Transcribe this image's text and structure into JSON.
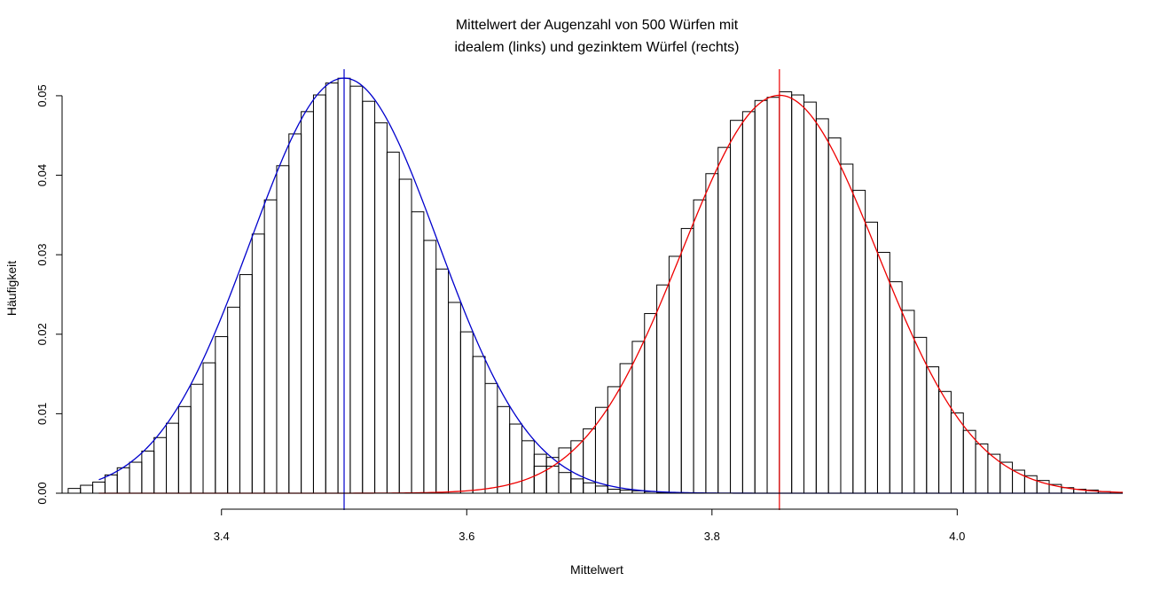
{
  "chart_data": {
    "type": "histogram",
    "title_line1": "Mittelwert der Augenzahl von 500 Würfen mit",
    "title_line2": "idealem (links) und gezinktem Würfel (rechts)",
    "xlabel": "Mittelwert",
    "ylabel": "Häufigkeit",
    "xlim": [
      3.27,
      4.135
    ],
    "ylim": [
      0,
      0.052
    ],
    "x_ticks": [
      3.4,
      3.6,
      3.8,
      4.0
    ],
    "x_tick_labels": [
      "3.4",
      "3.6",
      "3.8",
      "4.0"
    ],
    "y_ticks": [
      0,
      0.01,
      0.02,
      0.03,
      0.04,
      0.05
    ],
    "y_tick_labels": [
      "0.00",
      "0.01",
      "0.02",
      "0.03",
      "0.04",
      "0.05"
    ],
    "bin_width": 0.01,
    "series": [
      {
        "bins_start": 3.275,
        "color": "#000000",
        "values": [
          0.0006,
          0.001,
          0.0014,
          0.0023,
          0.0032,
          0.0039,
          0.0053,
          0.007,
          0.0088,
          0.0109,
          0.0137,
          0.0164,
          0.0197,
          0.0234,
          0.0275,
          0.0326,
          0.0369,
          0.0412,
          0.0452,
          0.048,
          0.0501,
          0.0516,
          0.0522,
          0.0512,
          0.0493,
          0.0466,
          0.0429,
          0.0395,
          0.0354,
          0.0318,
          0.0282,
          0.024,
          0.0203,
          0.0172,
          0.0138,
          0.0109,
          0.0087,
          0.0066,
          0.0049,
          0.0034,
          0.0026,
          0.0018,
          0.0013,
          0.0009,
          0.0005,
          0.0004,
          0.0003,
          0.0002,
          0.0001
        ]
      },
      {
        "bins_start": 3.655,
        "color": "#000000",
        "values": [
          0.0034,
          0.0045,
          0.0057,
          0.0066,
          0.0081,
          0.0108,
          0.0134,
          0.0163,
          0.0191,
          0.0226,
          0.0262,
          0.0298,
          0.0333,
          0.0369,
          0.0402,
          0.0435,
          0.0469,
          0.048,
          0.0494,
          0.0498,
          0.0505,
          0.0501,
          0.0492,
          0.0471,
          0.0447,
          0.0414,
          0.0381,
          0.0341,
          0.0303,
          0.0266,
          0.023,
          0.0196,
          0.0159,
          0.0128,
          0.0101,
          0.0079,
          0.0062,
          0.0049,
          0.0039,
          0.0029,
          0.0022,
          0.0016,
          0.0011,
          0.0007,
          0.0005,
          0.0004,
          0.0002
        ]
      }
    ],
    "density_curves": [
      {
        "mean": 3.5,
        "sd": 0.0764,
        "color": "#0000cc",
        "x_range": [
          3.3,
          4.135
        ]
      },
      {
        "mean": 3.855,
        "sd": 0.0797,
        "color": "#ee0000",
        "x_range": [
          3.3,
          4.135
        ]
      }
    ],
    "vertical_lines": [
      {
        "x": 3.5,
        "color": "#0000cc"
      },
      {
        "x": 3.855,
        "color": "#ee0000"
      }
    ]
  }
}
